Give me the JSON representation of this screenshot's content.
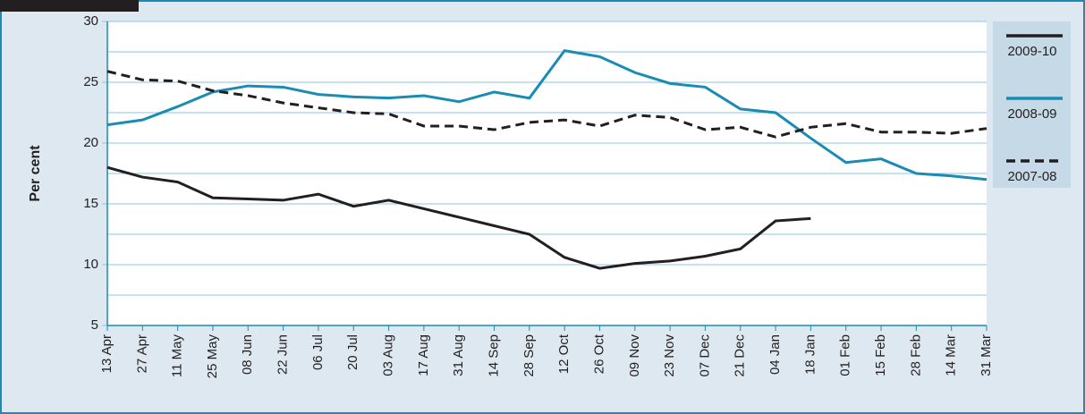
{
  "chart_data": {
    "type": "line",
    "y_label": "Per cent",
    "categories": [
      "13 Apr",
      "27 Apr",
      "11 May",
      "25 May",
      "08 Jun",
      "22 Jun",
      "06 Jul",
      "20 Jul",
      "03 Aug",
      "17 Aug",
      "31 Aug",
      "14 Sep",
      "28 Sep",
      "12 Oct",
      "26 Oct",
      "09 Nov",
      "23 Nov",
      "07 Dec",
      "21 Dec",
      "04 Jan",
      "18 Jan",
      "01 Feb",
      "15 Feb",
      "28 Feb",
      "14 Mar",
      "31 Mar"
    ],
    "series": [
      {
        "name": "2009-10",
        "color": "#231f20",
        "dashed": false,
        "values": [
          18.0,
          17.2,
          16.8,
          15.5,
          15.4,
          15.3,
          15.8,
          14.8,
          15.3,
          14.6,
          13.9,
          13.2,
          12.5,
          10.6,
          9.7,
          10.1,
          10.3,
          10.7,
          11.3,
          13.6,
          13.8,
          null,
          null,
          null,
          null,
          null
        ]
      },
      {
        "name": "2008-09",
        "color": "#1a8cb4",
        "dashed": false,
        "values": [
          21.5,
          21.9,
          23.0,
          24.2,
          24.7,
          24.6,
          24.0,
          23.8,
          23.7,
          23.9,
          23.4,
          24.2,
          23.7,
          27.6,
          27.1,
          25.8,
          24.9,
          24.6,
          22.8,
          22.5,
          20.4,
          18.4,
          18.7,
          17.5,
          17.3,
          17.0
        ]
      },
      {
        "name": "2007-08",
        "color": "#231f20",
        "dashed": true,
        "values": [
          25.9,
          25.2,
          25.1,
          24.3,
          23.9,
          23.3,
          22.9,
          22.5,
          22.4,
          21.4,
          21.4,
          21.1,
          21.7,
          21.9,
          21.4,
          22.3,
          22.1,
          21.1,
          21.3,
          20.5,
          21.3,
          21.6,
          20.9,
          20.9,
          20.8,
          21.2
        ]
      }
    ],
    "ylim": [
      5,
      30
    ],
    "yticks": [
      5,
      10,
      15,
      20,
      25,
      30
    ],
    "minor_yticks": [
      7.5,
      12.5,
      17.5,
      22.5,
      27.5
    ],
    "grid": true,
    "legend": "right"
  }
}
